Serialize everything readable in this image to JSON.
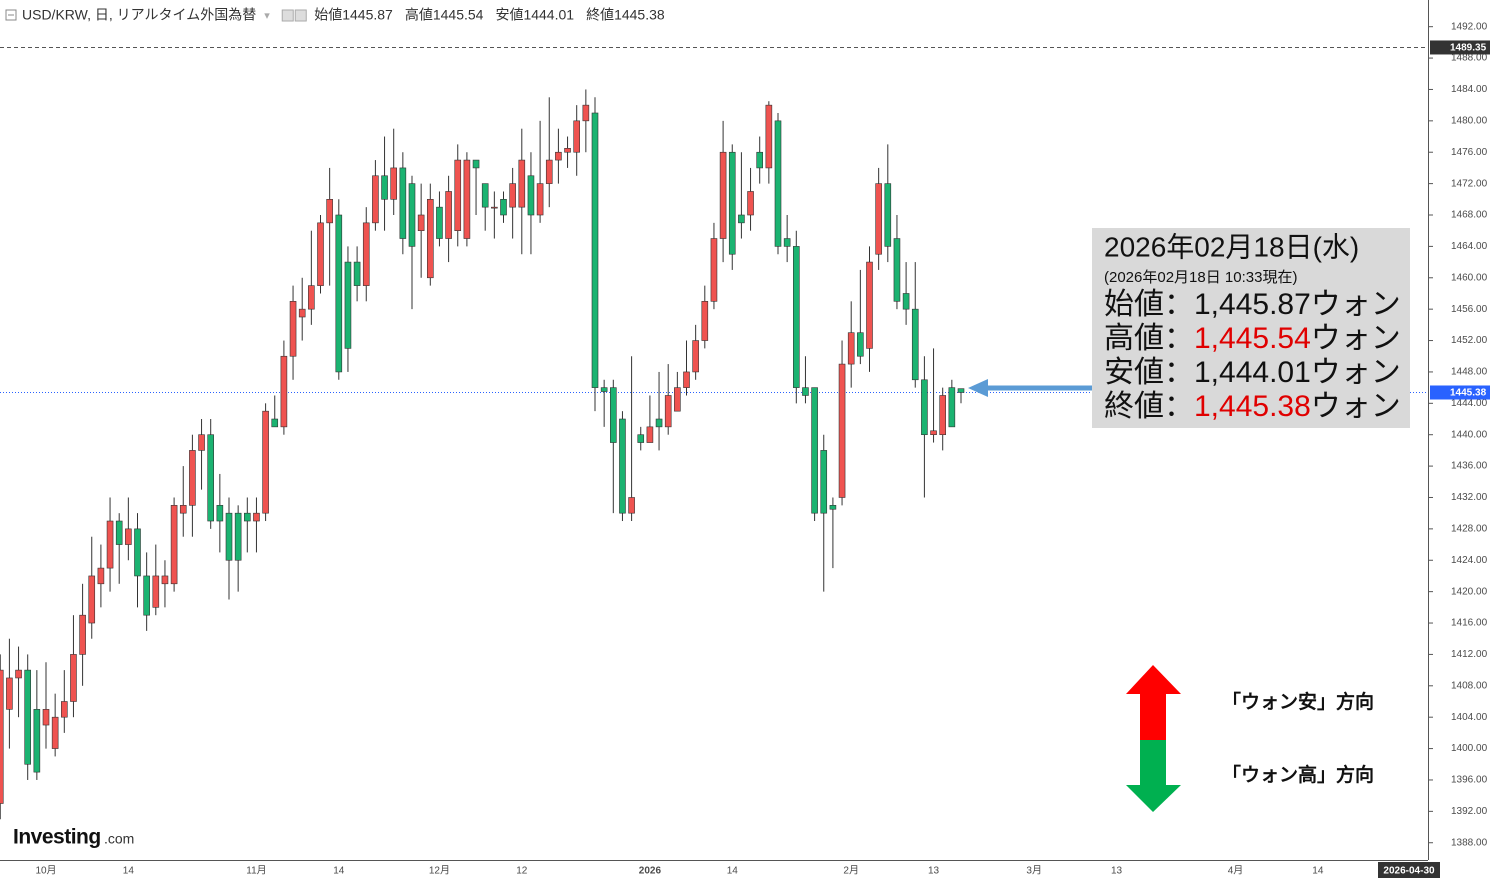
{
  "chart_data": {
    "type": "candlestick",
    "title": "USD/KRW, 日, リアルタイム外国為替",
    "ohlc_labels": [
      "始値",
      "高値",
      "安値",
      "終値"
    ],
    "up_color": "#ef5350",
    "down_color": "#1bb371",
    "categories": [
      null,
      null,
      null,
      null,
      null,
      "10月",
      null,
      null,
      null,
      null,
      null,
      null,
      null,
      null,
      "14",
      null,
      null,
      null,
      null,
      null,
      null,
      null,
      null,
      null,
      null,
      null,
      null,
      null,
      "11月",
      null,
      null,
      null,
      null,
      null,
      null,
      null,
      null,
      "14",
      null,
      null,
      null,
      null,
      null,
      null,
      null,
      null,
      null,
      null,
      "12月",
      null,
      null,
      null,
      null,
      null,
      null,
      null,
      null,
      "12",
      null,
      null,
      null,
      null,
      null,
      null,
      null,
      null,
      null,
      null,
      null,
      null,
      null,
      "2026",
      null,
      null,
      null,
      null,
      null,
      null,
      null,
      null,
      "14",
      null,
      null,
      null,
      null,
      null,
      null,
      null,
      null,
      null,
      null,
      null,
      null,
      "2月",
      null,
      null,
      null,
      null,
      null,
      null,
      null,
      null,
      "13",
      null,
      null,
      null,
      null,
      null,
      null,
      null,
      null,
      null,
      null,
      "3月",
      null,
      null,
      null,
      null,
      null,
      null,
      null,
      null,
      "13",
      null,
      null,
      null,
      null,
      null,
      null,
      null,
      null,
      null,
      null,
      null,
      null,
      "4月",
      null,
      null,
      null,
      null,
      null,
      null,
      null,
      null,
      "14",
      null,
      null,
      null,
      null,
      null,
      null,
      null,
      null,
      null,
      null,
      null,
      "2026-04-30"
    ],
    "open": [
      1393,
      1405,
      1409,
      1410,
      1405,
      1403,
      1400,
      1404,
      1406,
      1412,
      1416,
      1421,
      1423,
      1429,
      1426,
      1428,
      1422,
      1418,
      1421,
      1421,
      1430,
      1431,
      1438,
      1440,
      1431,
      1430,
      1430,
      1430,
      1429,
      1430,
      1442,
      1441,
      1450,
      1455,
      1456,
      1459,
      1467,
      1468,
      1462,
      1462,
      1459,
      1467,
      1473,
      1470,
      1474,
      1472,
      1466,
      1460,
      1469,
      1465,
      1466,
      1465,
      1475,
      1472,
      1469,
      1470,
      1469,
      1469,
      1473,
      1468,
      1472,
      1475,
      1476,
      1476,
      1480,
      1481,
      1446,
      1446,
      1442,
      1430,
      1440,
      1439,
      1442,
      1441,
      1443,
      1446,
      1448,
      1452,
      1457,
      1465,
      1476,
      1468,
      1468,
      1476,
      1474,
      1480,
      1465,
      1464,
      1446,
      1446,
      1438,
      1431,
      1432,
      1449,
      1453,
      1451,
      1463,
      1472,
      1465,
      1458,
      1456,
      1447,
      1440,
      1440,
      1446,
      1445.87,
      null,
      null,
      null,
      null,
      null,
      null,
      null,
      null,
      null,
      null,
      null,
      null,
      null,
      null,
      null,
      null,
      null,
      null,
      null,
      null,
      null,
      null,
      null,
      null,
      null,
      null,
      null,
      null,
      null,
      null,
      null,
      null,
      null,
      null,
      null,
      null,
      null,
      null,
      null,
      null,
      null,
      null,
      null,
      null,
      null,
      null,
      null,
      null,
      null,
      null,
      null
    ],
    "high": [
      1412,
      1414,
      1413,
      1412,
      1410,
      1411,
      1407,
      1410,
      1417,
      1421,
      1427,
      1426,
      1432,
      1430,
      1432,
      1430,
      1425,
      1426,
      1424,
      1432,
      1436,
      1440,
      1442,
      1442,
      1435,
      1432,
      1431,
      1432,
      1432,
      1444,
      1445,
      1452,
      1459,
      1460,
      1466,
      1468,
      1474,
      1470,
      1464,
      1464,
      1469,
      1475,
      1478,
      1479,
      1476,
      1473,
      1472,
      1472,
      1471,
      1473,
      1477,
      1476,
      1475,
      1472,
      1471,
      1471,
      1474,
      1479,
      1476,
      1480,
      1483,
      1479,
      1478,
      1482,
      1484,
      1483,
      1447,
      1447,
      1443,
      1450,
      1441,
      1445,
      1448,
      1449,
      1448,
      1452,
      1454,
      1459,
      1467,
      1480,
      1477,
      1476,
      1474,
      1478,
      1482.5,
      1481,
      1468,
      1466,
      1450,
      1446,
      1440,
      1432,
      1452,
      1457,
      1461,
      1464,
      1474,
      1477,
      1468,
      1462,
      1462,
      1450,
      1451,
      1446,
      1447,
      1445.54,
      null,
      null,
      null,
      null,
      null,
      null,
      null,
      null,
      null,
      null,
      null,
      null,
      null,
      null,
      null,
      null,
      null,
      null,
      null,
      null,
      null,
      null,
      null,
      null,
      null,
      null,
      null,
      null,
      null,
      null,
      null,
      null,
      null,
      null,
      null,
      null,
      null,
      null,
      null,
      null,
      null,
      null,
      null,
      null,
      null,
      null,
      null,
      null,
      null,
      null,
      null
    ],
    "low": [
      1391,
      1400,
      1404,
      1396,
      1396,
      1400,
      1399,
      1402,
      1404,
      1408,
      1414,
      1418,
      1420,
      1421,
      1424,
      1418,
      1415,
      1417,
      1418,
      1420,
      1427,
      1427,
      1433,
      1428,
      1425,
      1419,
      1420,
      1425,
      1425,
      1429,
      1441,
      1440,
      1447,
      1452,
      1454,
      1458,
      1459,
      1447,
      1448,
      1457,
      1457,
      1466,
      1466,
      1468,
      1463,
      1456,
      1460,
      1459,
      1464,
      1462,
      1464,
      1464,
      1468,
      1466,
      1465,
      1467,
      1465,
      1463,
      1463,
      1467,
      1469,
      1472,
      1474,
      1473,
      1476,
      1443,
      1441,
      1430,
      1429,
      1429,
      1438,
      1439,
      1438,
      1440,
      1443,
      1445,
      1447,
      1451,
      1456,
      1462,
      1461,
      1465,
      1466,
      1472,
      1472,
      1463,
      1462,
      1444,
      1444,
      1429,
      1420,
      1423,
      1431,
      1446,
      1449,
      1448,
      1461,
      1462,
      1456,
      1454,
      1446,
      1432,
      1439,
      1438,
      1441,
      1444.01,
      null,
      null,
      null,
      null,
      null,
      null,
      null,
      null,
      null,
      null,
      null,
      null,
      null,
      null,
      null,
      null,
      null,
      null,
      null,
      null,
      null,
      null,
      null,
      null,
      null,
      null,
      null,
      null,
      null,
      null,
      null,
      null,
      null,
      null,
      null,
      null,
      null,
      null,
      null,
      null,
      null,
      null,
      null,
      null,
      null,
      null,
      null,
      null,
      null,
      null,
      null
    ],
    "close": [
      1410,
      1409,
      1410,
      1398,
      1397,
      1405,
      1404,
      1406,
      1412,
      1417,
      1422,
      1423,
      1429,
      1426,
      1428,
      1422,
      1417,
      1422,
      1422,
      1431,
      1431,
      1438,
      1440,
      1429,
      1429,
      1424,
      1424,
      1429,
      1430,
      1443,
      1441,
      1450,
      1457,
      1456,
      1459,
      1467,
      1470,
      1448,
      1451,
      1459,
      1467,
      1473,
      1470,
      1474,
      1465,
      1464,
      1468,
      1470,
      1465,
      1471,
      1475,
      1475,
      1474,
      1469,
      1469,
      1468,
      1472,
      1475,
      1468,
      1472,
      1475,
      1476,
      1476.5,
      1480,
      1482,
      1446,
      1445.5,
      1439,
      1430,
      1432,
      1439,
      1441,
      1441,
      1445,
      1446,
      1448,
      1452,
      1457,
      1465,
      1476,
      1463,
      1467,
      1471,
      1474,
      1482,
      1464,
      1464,
      1446,
      1445,
      1430,
      1430,
      1430.5,
      1449,
      1453,
      1450,
      1462,
      1472,
      1464,
      1457,
      1456,
      1447,
      1440,
      1440.5,
      1445,
      1441,
      1445.38,
      null,
      null,
      null,
      null,
      null,
      null,
      null,
      null,
      null,
      null,
      null,
      null,
      null,
      null,
      null,
      null,
      null,
      null,
      null,
      null,
      null,
      null,
      null,
      null,
      null,
      null,
      null,
      null,
      null,
      null,
      null,
      null,
      null,
      null,
      null,
      null,
      null,
      null,
      null,
      null,
      null,
      null,
      null,
      null,
      null,
      null,
      null,
      null,
      null,
      null,
      null
    ],
    "ylim": [
      1385.8,
      1495.4
    ],
    "yticks": [
      {
        "value": 1388,
        "label": "1388.00"
      },
      {
        "value": 1392,
        "label": "1392.00"
      },
      {
        "value": 1396,
        "label": "1396.00"
      },
      {
        "value": 1400,
        "label": "1400.00"
      },
      {
        "value": 1404,
        "label": "1404.00"
      },
      {
        "value": 1408,
        "label": "1408.00"
      },
      {
        "value": 1412,
        "label": "1412.00"
      },
      {
        "value": 1416,
        "label": "1416.00"
      },
      {
        "value": 1420,
        "label": "1420.00"
      },
      {
        "value": 1424,
        "label": "1424.00"
      },
      {
        "value": 1428,
        "label": "1428.00"
      },
      {
        "value": 1432,
        "label": "1432.00"
      },
      {
        "value": 1436,
        "label": "1436.00"
      },
      {
        "value": 1440,
        "label": "1440.00"
      },
      {
        "value": 1444,
        "label": "1444.00"
      },
      {
        "value": 1448,
        "label": "1448.00"
      },
      {
        "value": 1452,
        "label": "1452.00"
      },
      {
        "value": 1456,
        "label": "1456.00"
      },
      {
        "value": 1460,
        "label": "1460.00"
      },
      {
        "value": 1464,
        "label": "1464.00"
      },
      {
        "value": 1468,
        "label": "1468.00"
      },
      {
        "value": 1472,
        "label": "1472.00"
      },
      {
        "value": 1476,
        "label": "1476.00"
      },
      {
        "value": 1480,
        "label": "1480.00"
      },
      {
        "value": 1484,
        "label": "1484.00"
      },
      {
        "value": 1488,
        "label": "1488.00"
      },
      {
        "value": 1492,
        "label": "1492.00"
      }
    ],
    "price_lines": [
      {
        "value": 1489.35,
        "color": "#555555"
      },
      {
        "value": 1445.38,
        "color": "#2962ff"
      }
    ]
  },
  "info_box": {
    "date": "2026年02月18日(水)",
    "timestamp": "(2026年02月18日 10:33現在)",
    "rows": [
      {
        "label": "始値：",
        "value": "1,445.87",
        "unit": "ウォン",
        "color": "#111111"
      },
      {
        "label": "高値：",
        "value": "1,445.54",
        "unit": "ウォン",
        "color": "#e00000"
      },
      {
        "label": "安値：",
        "value": "1,444.01",
        "unit": "ウォン",
        "color": "#111111"
      },
      {
        "label": "終値：",
        "value": "1,445.38",
        "unit": "ウォン",
        "color": "#e00000"
      }
    ]
  },
  "direction_legend": [
    {
      "label": "「ウォン安」方向",
      "color": "#ff0000"
    },
    {
      "label": "「ウォン高」方向",
      "color": "#00b050"
    }
  ],
  "logo": {
    "brand": "Investing",
    "suffix": ".com"
  }
}
